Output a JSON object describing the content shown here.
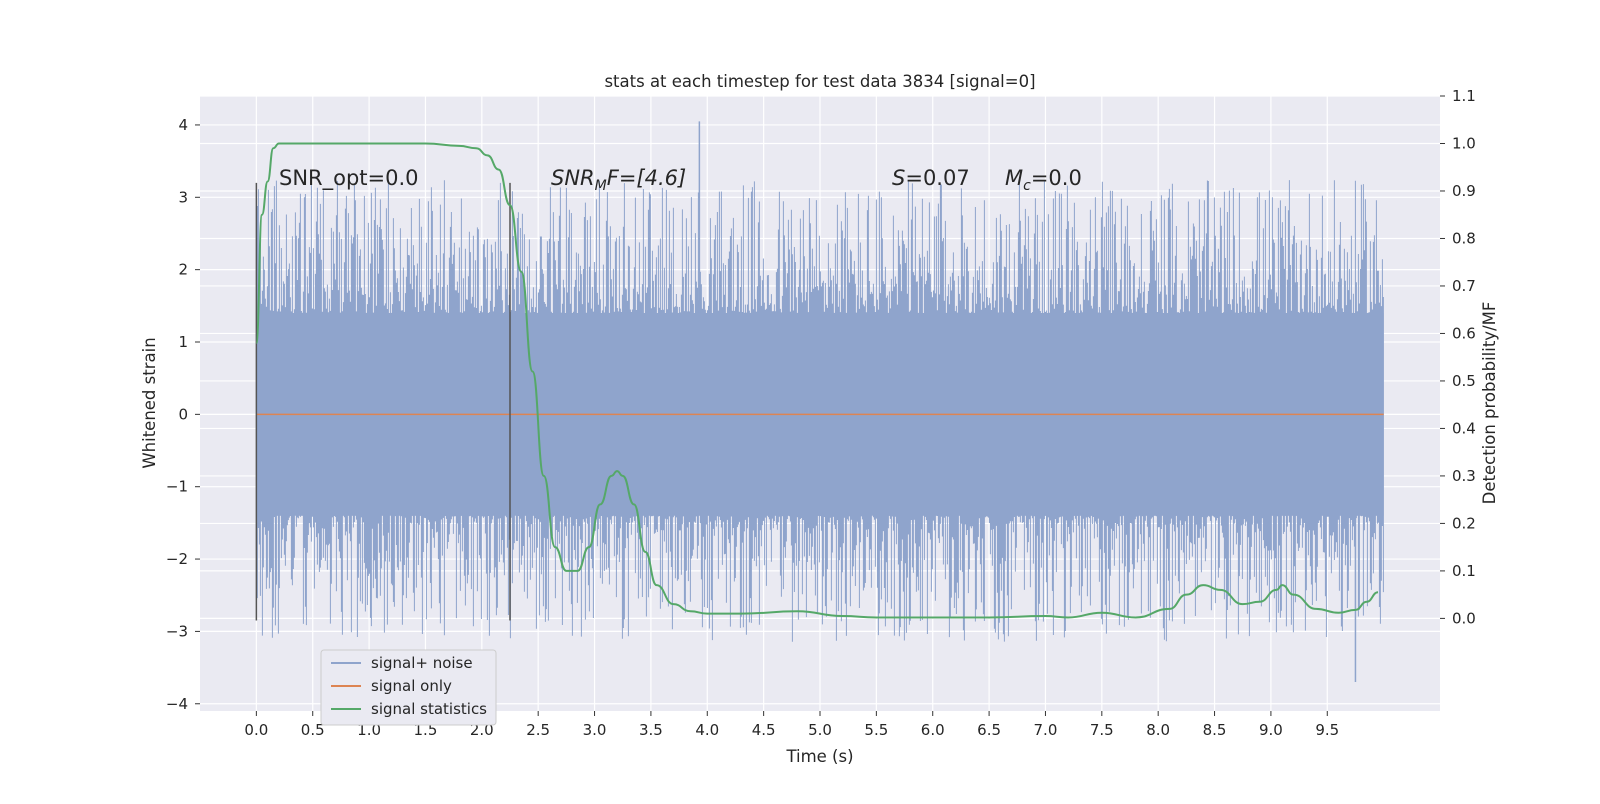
{
  "chart_data": {
    "type": "line",
    "title": "stats at each timestep for test data 3834 [signal=0]",
    "xlabel": "Time (s)",
    "ylabel": "Whitened strain",
    "y2label": "Detection probability/MF",
    "xlim": [
      -0.5,
      10.5
    ],
    "ylim": [
      -4.1,
      4.4
    ],
    "y2lim": [
      -0.195,
      1.1
    ],
    "x_ticks": [
      "0.0",
      "0.5",
      "1.0",
      "1.5",
      "2.0",
      "2.5",
      "3.0",
      "3.5",
      "4.0",
      "4.5",
      "5.0",
      "5.5",
      "6.0",
      "6.5",
      "7.0",
      "7.5",
      "8.0",
      "8.5",
      "9.0",
      "9.5"
    ],
    "y_ticks": [
      "−4",
      "−3",
      "−2",
      "−1",
      "0",
      "1",
      "2",
      "3",
      "4"
    ],
    "y2_ticks": [
      "0.0",
      "0.1",
      "0.2",
      "0.3",
      "0.4",
      "0.5",
      "0.6",
      "0.7",
      "0.8",
      "0.9",
      "1.0",
      "1.1"
    ],
    "grid": true,
    "legend_position": "lower-left",
    "colors": {
      "background": "#eaeaf2",
      "grid": "#ffffff",
      "noise": "#8fa4cc",
      "signal_only": "#dd8452",
      "statistics": "#55a868",
      "marker": "#555555"
    },
    "annotations": {
      "snr_opt": "SNR_opt=0.0",
      "snr_mf_base": "SNR",
      "snr_mf_sub": "M",
      "snr_mf_rest": "F=[4.6]",
      "s_text": "=0.07",
      "s_symbol": "S",
      "mc_symbol": "M",
      "mc_sub": "c",
      "mc_rest": "=0.0"
    },
    "vertical_markers": [
      0.0,
      2.25
    ],
    "series": [
      {
        "name": "signal+ noise",
        "axis": "left",
        "x_range": [
          0.0,
          10.0
        ],
        "core_amplitude": 1.4,
        "peak_range": [
          -3.7,
          4.05
        ],
        "note_shape": "dense noise"
      },
      {
        "name": "signal only",
        "axis": "left",
        "x": [
          0.0,
          10.0
        ],
        "values": [
          0.0,
          0.0
        ]
      },
      {
        "name": "signal statistics",
        "axis": "right",
        "x": [
          0.0,
          0.05,
          0.1,
          0.15,
          0.2,
          0.3,
          0.5,
          1.0,
          1.5,
          1.8,
          1.95,
          2.05,
          2.15,
          2.25,
          2.35,
          2.45,
          2.55,
          2.65,
          2.75,
          2.85,
          2.95,
          3.05,
          3.15,
          3.2,
          3.25,
          3.35,
          3.45,
          3.55,
          3.7,
          3.85,
          4.0,
          4.3,
          4.8,
          5.2,
          5.5,
          6.0,
          6.5,
          7.0,
          7.2,
          7.5,
          7.8,
          8.1,
          8.25,
          8.4,
          8.55,
          8.75,
          8.9,
          9.05,
          9.1,
          9.2,
          9.4,
          9.6,
          9.75,
          9.85,
          9.95
        ],
        "values": [
          0.58,
          0.85,
          0.92,
          0.99,
          1.0,
          1.0,
          1.0,
          1.0,
          1.0,
          0.995,
          0.99,
          0.975,
          0.945,
          0.87,
          0.73,
          0.52,
          0.3,
          0.15,
          0.1,
          0.1,
          0.15,
          0.24,
          0.3,
          0.31,
          0.3,
          0.24,
          0.14,
          0.07,
          0.03,
          0.015,
          0.01,
          0.01,
          0.015,
          0.005,
          0.002,
          0.002,
          0.002,
          0.005,
          0.002,
          0.012,
          0.002,
          0.02,
          0.05,
          0.07,
          0.06,
          0.03,
          0.035,
          0.06,
          0.07,
          0.05,
          0.02,
          0.012,
          0.018,
          0.035,
          0.055
        ]
      }
    ]
  }
}
